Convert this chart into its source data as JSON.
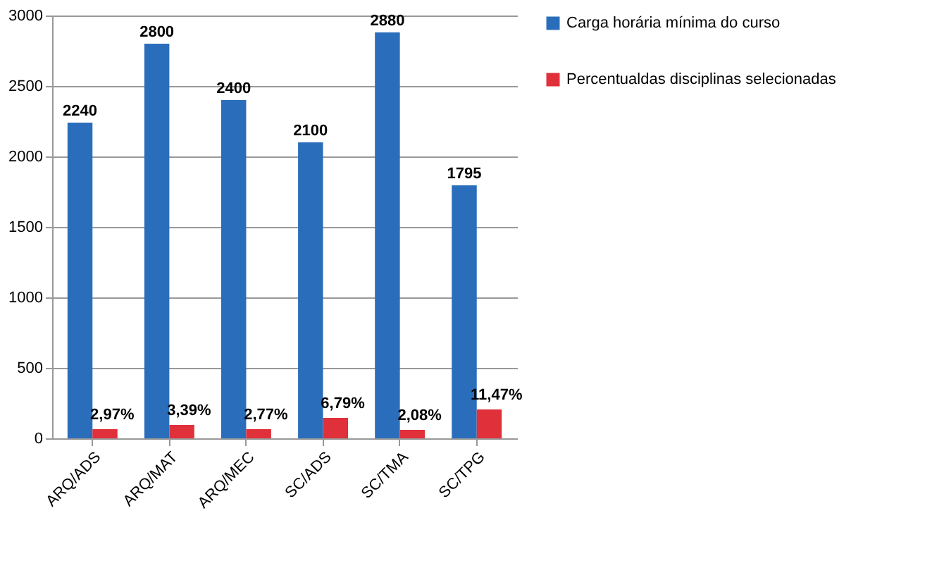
{
  "chart_data": {
    "type": "bar",
    "categories": [
      "ARQ/ADS",
      "ARQ/MAT",
      "ARQ/MEC",
      "SC/ADS",
      "SC/TMA",
      "SC/TPG"
    ],
    "series": [
      {
        "name": "Carga horária mínima  do curso",
        "color": "#2a6ebb",
        "values": [
          2240,
          2800,
          2400,
          2100,
          2880,
          1795
        ],
        "value_labels": [
          "2240",
          "2800",
          "2400",
          "2100",
          "2880",
          "1795"
        ]
      },
      {
        "name": "Percentualdas disciplinas selecionadas",
        "color": "#e0303a",
        "values": [
          65,
          95,
          65,
          145,
          60,
          205
        ]
      }
    ],
    "annotations": [
      {
        "text": "2,97%",
        "x": "ARQ/ADS",
        "y": 65
      },
      {
        "text": "3,39%",
        "x": "ARQ/MAT",
        "y": 95
      },
      {
        "text": "2,77%",
        "x": "ARQ/MEC",
        "y": 65
      },
      {
        "text": "6,79%",
        "x": "SC/ADS",
        "y": 145
      },
      {
        "text": "2,08%",
        "x": "SC/TMA",
        "y": 60
      },
      {
        "text": "11,47%",
        "x": "SC/TPG",
        "y": 205
      }
    ],
    "ylim": [
      0,
      3000
    ],
    "yticks": [
      0,
      500,
      1000,
      1500,
      2000,
      2500,
      3000
    ],
    "grid": "y",
    "legend": "right"
  }
}
